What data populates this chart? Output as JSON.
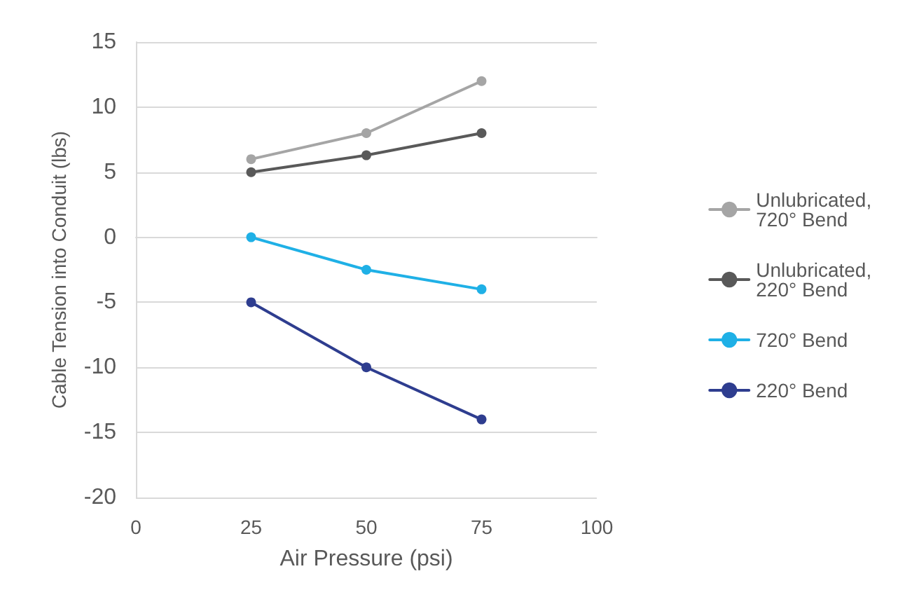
{
  "chart_data": {
    "type": "line",
    "xlabel": "Air Pressure (psi)",
    "ylabel": "Cable Tension into Conduit (lbs)",
    "x": [
      25,
      50,
      75
    ],
    "series": [
      {
        "name": "Unlubricated, 720° Bend",
        "color": "#a5a5a5",
        "values": [
          6,
          8,
          12
        ]
      },
      {
        "name": "Unlubricated, 220° Bend",
        "color": "#595959",
        "values": [
          5,
          6.3,
          8
        ]
      },
      {
        "name": "720° Bend",
        "color": "#1fb0e6",
        "values": [
          0,
          -2.5,
          -4
        ]
      },
      {
        "name": "220° Bend",
        "color": "#2e3d8f",
        "values": [
          -5,
          -10,
          -14
        ]
      }
    ],
    "xlim": [
      0,
      100
    ],
    "xticks": [
      0,
      25,
      50,
      75,
      100
    ],
    "ylim": [
      -20,
      15
    ],
    "yticks": [
      -20,
      -15,
      -10,
      -5,
      0,
      5,
      10,
      15
    ],
    "grid": "y",
    "legend": "right",
    "marker": "circle",
    "line_style": "solid"
  }
}
